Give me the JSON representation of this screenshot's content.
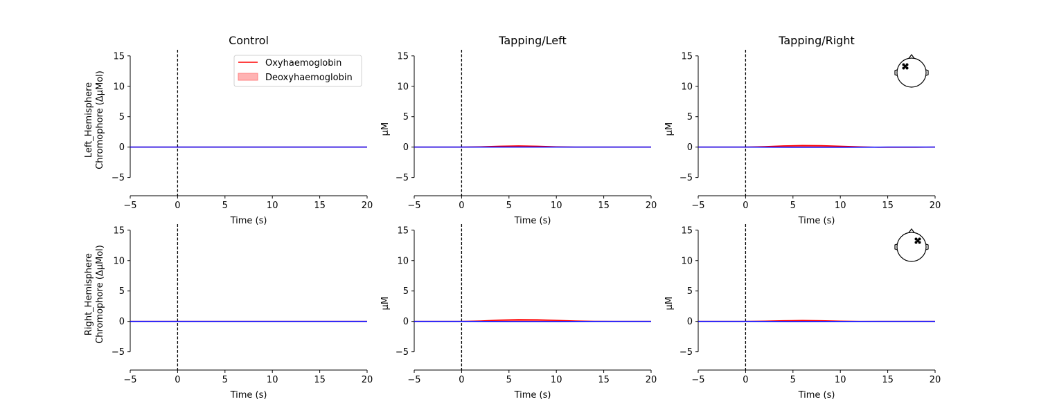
{
  "colors": {
    "oxy": "#ff0000",
    "deoxy": "#0000ff",
    "fill": "#ff0000",
    "legend_patch": "#ffb3b3",
    "legend_patch_edge": "#ff8080",
    "axis": "#000000",
    "onset": "#000000"
  },
  "chart_data": [
    {
      "type": "line",
      "panel": "Left_Hemisphere / Control",
      "title": "Control",
      "xlabel": "Time (s)",
      "ylabel": [
        "Left_Hemisphere",
        "Chromophore (ΔμMol)"
      ],
      "xlim": [
        -5,
        20
      ],
      "ylim": [
        -8,
        16
      ],
      "x_ticks": [
        "−5",
        "0",
        "5",
        "10",
        "15",
        "20"
      ],
      "y_ticks": [
        "−5",
        "0",
        "5",
        "10",
        "15"
      ],
      "onset_x": 0,
      "legend": {
        "position": "top-right",
        "entries": [
          "Oxyhaemoglobin",
          "Deoxyhaemoglobin"
        ]
      },
      "sensor_map": false,
      "series": [
        {
          "name": "Oxyhaemoglobin",
          "x": [
            -5,
            0,
            5,
            10,
            15,
            20
          ],
          "y": [
            0,
            0,
            0,
            0,
            0,
            0
          ]
        },
        {
          "name": "Deoxyhaemoglobin",
          "x": [
            -5,
            0,
            5,
            10,
            15,
            20
          ],
          "y": [
            0,
            0,
            0,
            0,
            0,
            0
          ]
        }
      ]
    },
    {
      "type": "line",
      "panel": "Left_Hemisphere / Tapping/Left",
      "title": "Tapping/Left",
      "xlabel": "Time (s)",
      "ylabel": [
        "μM"
      ],
      "xlim": [
        -5,
        20
      ],
      "ylim": [
        -8,
        16
      ],
      "x_ticks": [
        "−5",
        "0",
        "5",
        "10",
        "15",
        "20"
      ],
      "y_ticks": [
        "−5",
        "0",
        "5",
        "10",
        "15"
      ],
      "onset_x": 0,
      "sensor_map": false,
      "series": [
        {
          "name": "Oxyhaemoglobin",
          "x": [
            -5,
            0,
            2,
            4,
            6,
            8,
            10,
            12,
            15,
            20
          ],
          "y": [
            0,
            0,
            0.05,
            0.15,
            0.2,
            0.15,
            0.05,
            0,
            0,
            0
          ]
        },
        {
          "name": "Deoxyhaemoglobin",
          "x": [
            -5,
            0,
            5,
            10,
            15,
            20
          ],
          "y": [
            0,
            0,
            0,
            0,
            0,
            0
          ]
        }
      ]
    },
    {
      "type": "line",
      "panel": "Left_Hemisphere / Tapping/Right",
      "title": "Tapping/Right",
      "xlabel": "Time (s)",
      "ylabel": [
        "μM"
      ],
      "xlim": [
        -5,
        20
      ],
      "ylim": [
        -8,
        16
      ],
      "x_ticks": [
        "−5",
        "0",
        "5",
        "10",
        "15",
        "20"
      ],
      "y_ticks": [
        "−5",
        "0",
        "5",
        "10",
        "15"
      ],
      "onset_x": 0,
      "sensor_map": true,
      "sensor_side": "left",
      "series": [
        {
          "name": "Oxyhaemoglobin",
          "x": [
            -5,
            0,
            2,
            4,
            6,
            8,
            10,
            12,
            14,
            16,
            18,
            20
          ],
          "y": [
            0,
            0,
            0.08,
            0.2,
            0.28,
            0.25,
            0.15,
            0.05,
            -0.02,
            -0.03,
            -0.02,
            0
          ]
        },
        {
          "name": "Deoxyhaemoglobin",
          "x": [
            -5,
            0,
            5,
            10,
            15,
            20
          ],
          "y": [
            0,
            0,
            -0.03,
            -0.02,
            0,
            0
          ]
        }
      ]
    },
    {
      "type": "line",
      "panel": "Right_Hemisphere / Control",
      "title": "",
      "xlabel": "Time (s)",
      "ylabel": [
        "Right_Hemisphere",
        "Chromophore (ΔμMol)"
      ],
      "xlim": [
        -5,
        20
      ],
      "ylim": [
        -8,
        16
      ],
      "x_ticks": [
        "−5",
        "0",
        "5",
        "10",
        "15",
        "20"
      ],
      "y_ticks": [
        "−5",
        "0",
        "5",
        "10",
        "15"
      ],
      "onset_x": 0,
      "sensor_map": false,
      "series": [
        {
          "name": "Oxyhaemoglobin",
          "x": [
            -5,
            0,
            5,
            10,
            15,
            20
          ],
          "y": [
            0,
            0,
            0,
            0,
            0,
            0
          ]
        },
        {
          "name": "Deoxyhaemoglobin",
          "x": [
            -5,
            0,
            5,
            10,
            15,
            20
          ],
          "y": [
            0,
            0,
            0,
            0,
            0,
            0
          ]
        }
      ]
    },
    {
      "type": "line",
      "panel": "Right_Hemisphere / Tapping/Left",
      "title": "",
      "xlabel": "Time (s)",
      "ylabel": [
        "μM"
      ],
      "xlim": [
        -5,
        20
      ],
      "ylim": [
        -8,
        16
      ],
      "x_ticks": [
        "−5",
        "0",
        "5",
        "10",
        "15",
        "20"
      ],
      "y_ticks": [
        "−5",
        "0",
        "5",
        "10",
        "15"
      ],
      "onset_x": 0,
      "sensor_map": false,
      "series": [
        {
          "name": "Oxyhaemoglobin",
          "x": [
            -5,
            0,
            2,
            4,
            6,
            8,
            10,
            12,
            14,
            16,
            20
          ],
          "y": [
            0,
            0,
            0.08,
            0.22,
            0.3,
            0.28,
            0.18,
            0.08,
            0.02,
            0,
            0
          ]
        },
        {
          "name": "Deoxyhaemoglobin",
          "x": [
            -5,
            0,
            5,
            10,
            15,
            20
          ],
          "y": [
            0,
            0,
            -0.03,
            -0.02,
            0,
            0
          ]
        }
      ]
    },
    {
      "type": "line",
      "panel": "Right_Hemisphere / Tapping/Right",
      "title": "",
      "xlabel": "Time (s)",
      "ylabel": [
        "μM"
      ],
      "xlim": [
        -5,
        20
      ],
      "ylim": [
        -8,
        16
      ],
      "x_ticks": [
        "−5",
        "0",
        "5",
        "10",
        "15",
        "20"
      ],
      "y_ticks": [
        "−5",
        "0",
        "5",
        "10",
        "15"
      ],
      "onset_x": 0,
      "sensor_map": true,
      "sensor_side": "right",
      "series": [
        {
          "name": "Oxyhaemoglobin",
          "x": [
            -5,
            0,
            2,
            4,
            6,
            8,
            10,
            12,
            15,
            20
          ],
          "y": [
            0,
            0,
            0.05,
            0.12,
            0.16,
            0.12,
            0.05,
            0,
            0,
            0
          ]
        },
        {
          "name": "Deoxyhaemoglobin",
          "x": [
            -5,
            0,
            5,
            10,
            15,
            20
          ],
          "y": [
            0,
            0,
            -0.02,
            -0.01,
            0,
            0
          ]
        }
      ]
    }
  ]
}
